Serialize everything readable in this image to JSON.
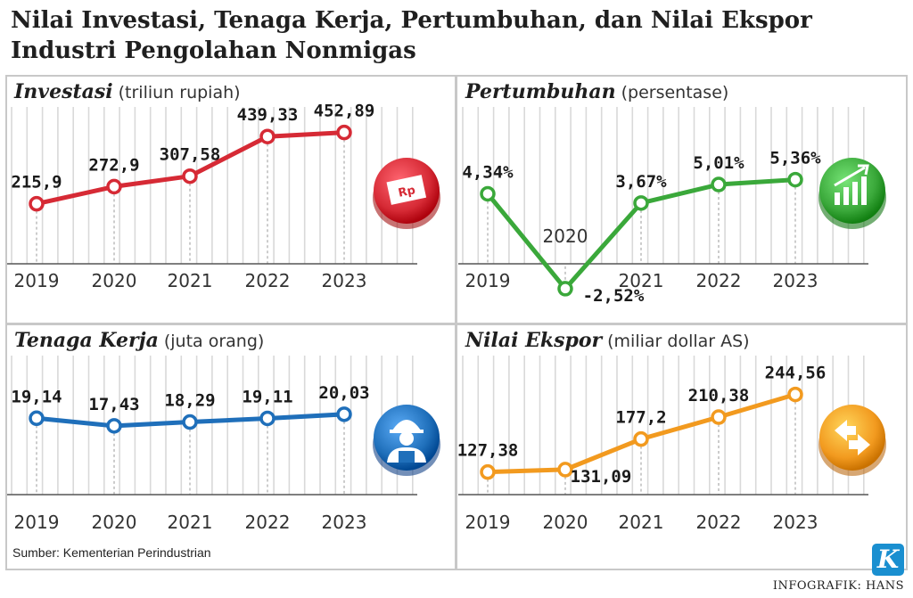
{
  "title": "Nilai Investasi, Tenaga Kerja, Pertumbuhan, dan Nilai Ekspor Industri Pengolahan Nonmigas",
  "source": "Sumber: Kementerian Perindustrian",
  "credit": "INFOGRAFIK: HANS",
  "logo_letter": "K",
  "chart_data": [
    {
      "type": "line",
      "title": "Investasi",
      "unit": "(triliun rupiah)",
      "color": "#d62a35",
      "icon": "rupiah-banknote-icon",
      "icon_text": "Rp",
      "x": [
        "2019",
        "2020",
        "2021",
        "2022",
        "2023"
      ],
      "values": [
        215.9,
        272.9,
        307.58,
        439.33,
        452.89
      ],
      "labels": [
        "215,9",
        "272,9",
        "307,58",
        "439,33",
        "452,89"
      ],
      "ylim": [
        120,
        520
      ],
      "grid": true
    },
    {
      "type": "line",
      "title": "Pertumbuhan",
      "unit": "(persentase)",
      "color": "#3aa83a",
      "icon": "growth-bar-chart-icon",
      "x": [
        "2019",
        "2020",
        "2021",
        "2022",
        "2023"
      ],
      "values": [
        4.34,
        -2.52,
        3.67,
        5.01,
        5.36
      ],
      "labels": [
        "4,34%",
        "-2,52%",
        "3,67%",
        "5,01%",
        "5,36%"
      ],
      "ylim": [
        -3.3,
        8.3
      ],
      "grid": true
    },
    {
      "type": "line",
      "title": "Tenaga Kerja",
      "unit": "(juta orang)",
      "color": "#1f6fba",
      "icon": "worker-hardhat-icon",
      "x": [
        "2019",
        "2020",
        "2021",
        "2022",
        "2023"
      ],
      "values": [
        19.14,
        17.43,
        18.29,
        19.11,
        20.03
      ],
      "labels": [
        "19,14",
        "17,43",
        "18,29",
        "19,11",
        "20,03"
      ],
      "ylim": [
        10,
        30
      ],
      "grid": true
    },
    {
      "type": "line",
      "title": "Nilai Ekspor",
      "unit": "(miliar dollar AS)",
      "color": "#f29a1f",
      "icon": "exchange-arrows-icon",
      "x": [
        "2019",
        "2020",
        "2021",
        "2022",
        "2023"
      ],
      "values": [
        127.38,
        131.09,
        177.2,
        210.38,
        244.56
      ],
      "labels": [
        "127,38",
        "131,09",
        "177,2",
        "210,38",
        "244,56"
      ],
      "ylim": [
        100,
        275
      ],
      "grid": true
    }
  ]
}
